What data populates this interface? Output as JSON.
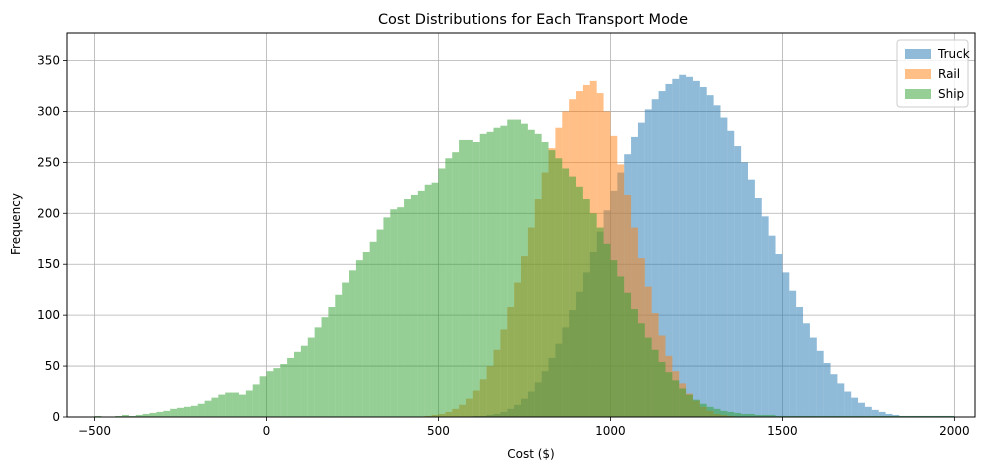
{
  "chart_data": {
    "type": "histogram",
    "title": "Cost Distributions for Each Transport Mode",
    "xlabel": "Cost ($)",
    "ylabel": "Frequency",
    "xlim": [
      -580,
      2060
    ],
    "ylim": [
      0,
      377
    ],
    "xticks": [
      -500,
      0,
      500,
      1000,
      1500,
      2000
    ],
    "yticks": [
      0,
      50,
      100,
      150,
      200,
      250,
      300,
      350
    ],
    "grid": true,
    "legend_position": "top-right",
    "series": [
      {
        "name": "Truck",
        "color": "#1f77b4",
        "opacity": 0.5,
        "bin_start": 600,
        "bin_width": 20,
        "values": [
          1,
          1,
          2,
          3,
          5,
          8,
          12,
          18,
          25,
          34,
          45,
          58,
          72,
          88,
          105,
          123,
          142,
          162,
          182,
          203,
          222,
          240,
          258,
          275,
          289,
          302,
          312,
          320,
          327,
          332,
          336,
          334,
          330,
          324,
          316,
          306,
          294,
          281,
          266,
          250,
          233,
          215,
          197,
          178,
          160,
          142,
          124,
          108,
          92,
          78,
          65,
          53,
          42,
          33,
          25,
          19,
          14,
          10,
          7,
          5,
          3,
          2,
          1,
          1,
          1,
          1,
          1,
          1,
          1,
          1
        ]
      },
      {
        "name": "Rail",
        "color": "#ff7f0e",
        "opacity": 0.5,
        "bin_start": 460,
        "bin_width": 20,
        "values": [
          1,
          2,
          3,
          5,
          8,
          12,
          18,
          26,
          37,
          50,
          66,
          86,
          108,
          132,
          158,
          186,
          214,
          240,
          264,
          284,
          300,
          312,
          320,
          326,
          330,
          318,
          300,
          276,
          248,
          218,
          186,
          156,
          128,
          102,
          80,
          60,
          45,
          33,
          23,
          16,
          10,
          6,
          3,
          2,
          1
        ]
      },
      {
        "name": "Ship",
        "color": "#2ca02c",
        "opacity": 0.5,
        "bin_start": -500,
        "bin_width": 20,
        "values": [
          1,
          0,
          0,
          1,
          2,
          1,
          2,
          3,
          4,
          5,
          6,
          8,
          9,
          10,
          11,
          13,
          16,
          19,
          22,
          24,
          24,
          22,
          26,
          32,
          40,
          45,
          48,
          52,
          58,
          64,
          70,
          78,
          88,
          98,
          108,
          120,
          132,
          144,
          154,
          162,
          172,
          184,
          196,
          204,
          206,
          214,
          218,
          222,
          228,
          230,
          244,
          254,
          260,
          272,
          272,
          270,
          278,
          280,
          284,
          286,
          292,
          292,
          288,
          282,
          278,
          270,
          262,
          254,
          244,
          236,
          226,
          214,
          200,
          186,
          170,
          154,
          138,
          122,
          106,
          92,
          78,
          66,
          54,
          44,
          36,
          28,
          22,
          17,
          13,
          10,
          8,
          6,
          5,
          4,
          3,
          3,
          2,
          2,
          2,
          1,
          1,
          1,
          1,
          1,
          1,
          1,
          1,
          1,
          1,
          1,
          1,
          1,
          1,
          1,
          1,
          1,
          1,
          1,
          1,
          1,
          1,
          1,
          1,
          1,
          1
        ]
      }
    ]
  }
}
